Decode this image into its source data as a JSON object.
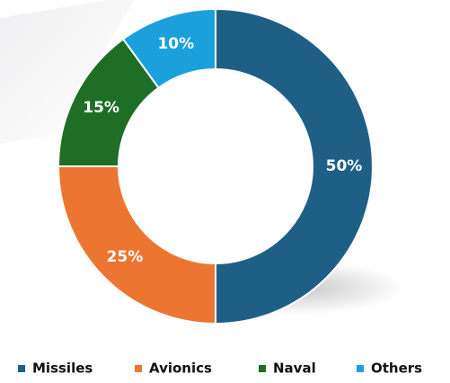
{
  "chart_data": {
    "type": "donut",
    "categories": [
      "Missiles",
      "Avionics",
      "Naval",
      "Others"
    ],
    "values": [
      50,
      25,
      15,
      10
    ],
    "value_labels": [
      "50%",
      "25%",
      "15%",
      "10%"
    ],
    "colors": [
      "#1f5f86",
      "#ed7532",
      "#1f6e26",
      "#1ba0dc"
    ],
    "legend": "bottom"
  }
}
